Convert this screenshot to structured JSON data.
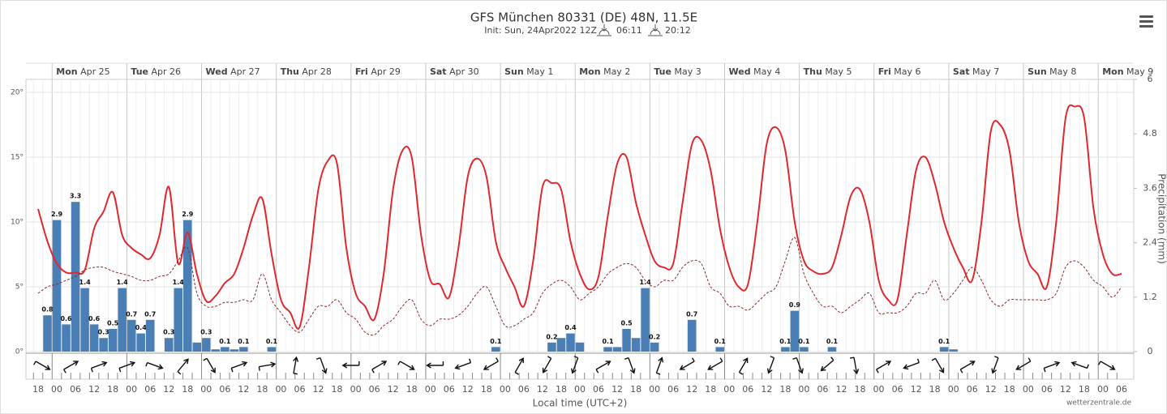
{
  "chart_data": {
    "type": "combo",
    "title": "GFS München 80331 (DE) 48N, 11.5E",
    "subtitle": {
      "init": "Init: Sun, 24Apr2022 12Z",
      "sunrise": "06:11",
      "sunset": "20:12"
    },
    "x_label": "Local time (UTC+2)",
    "y2_label": "Precipitation (mm)",
    "credit": "wetterzentrale.de",
    "day_headers": [
      {
        "weekday": "Mon",
        "date": "Apr 25"
      },
      {
        "weekday": "Tue",
        "date": "Apr 26"
      },
      {
        "weekday": "Wed",
        "date": "Apr 27"
      },
      {
        "weekday": "Thu",
        "date": "Apr 28"
      },
      {
        "weekday": "Fri",
        "date": "Apr 29"
      },
      {
        "weekday": "Sat",
        "date": "Apr 30"
      },
      {
        "weekday": "Sun",
        "date": "May 1"
      },
      {
        "weekday": "Mon",
        "date": "May 2"
      },
      {
        "weekday": "Tue",
        "date": "May 3"
      },
      {
        "weekday": "Wed",
        "date": "May 4"
      },
      {
        "weekday": "Thu",
        "date": "May 5"
      },
      {
        "weekday": "Fri",
        "date": "May 6"
      },
      {
        "weekday": "Sat",
        "date": "May 7"
      },
      {
        "weekday": "Sun",
        "date": "May 8"
      },
      {
        "weekday": "Mon",
        "date": "May 9"
      }
    ],
    "categories": [
      "18",
      null,
      "00",
      null,
      "06",
      null,
      "12",
      null,
      "18",
      null,
      "00",
      null,
      "06",
      null,
      "12",
      null,
      "18",
      null,
      "00",
      null,
      "06",
      null,
      "12",
      null,
      "18",
      null,
      "00",
      null,
      "06",
      null,
      "12",
      null,
      "18",
      null,
      "00",
      null,
      "06",
      null,
      "12",
      null,
      "18",
      null,
      "00",
      null,
      "06",
      null,
      "12",
      null,
      "18",
      null,
      "00",
      null,
      "06",
      null,
      "12",
      null,
      "18",
      null,
      "00",
      null,
      "06",
      null,
      "12",
      null,
      "18",
      null,
      "00",
      null,
      "06",
      null,
      "12",
      null,
      "18",
      null,
      "00",
      null,
      "06",
      null,
      "12",
      null,
      "18",
      null,
      "00",
      null,
      "06",
      null,
      "12",
      null,
      "18",
      null,
      "00",
      null,
      "06",
      null,
      "12",
      null,
      "18",
      null,
      "00",
      null,
      "06",
      null,
      "12",
      null,
      "18",
      null,
      "00",
      null,
      "06",
      null,
      "12",
      null,
      "18",
      null,
      "00",
      null,
      "06"
    ],
    "ylim": [
      0,
      21
    ],
    "yticks": [
      {
        "value": 0,
        "label": "0°"
      },
      {
        "value": 5,
        "label": "5°"
      },
      {
        "value": 10,
        "label": "10°"
      },
      {
        "value": 15,
        "label": "15°"
      },
      {
        "value": 20,
        "label": "20°"
      }
    ],
    "y2lim": [
      0,
      6
    ],
    "y2ticks": [
      0,
      1.2,
      2.4,
      3.6,
      4.8,
      6
    ],
    "grid": true,
    "series": [
      {
        "type": "bar",
        "axis": "y2",
        "color": "#4a7fb5",
        "values": [
          0,
          0.8,
          2.9,
          0.6,
          3.3,
          1.4,
          0.6,
          0.3,
          0.5,
          1.4,
          0.7,
          0.4,
          0.7,
          0,
          0.3,
          1.4,
          2.9,
          0.2,
          0.3,
          0.05,
          0.1,
          0.05,
          0.1,
          0,
          0,
          0.1,
          0,
          0,
          0,
          0,
          0,
          0,
          0,
          0,
          0,
          0,
          0,
          0,
          0,
          0,
          0,
          0,
          0,
          0,
          0,
          0,
          0,
          0,
          0,
          0.1,
          0,
          0,
          0,
          0,
          0,
          0.2,
          0.3,
          0.4,
          0.2,
          0,
          0,
          0.1,
          0.1,
          0.5,
          0.3,
          1.4,
          0.2,
          0,
          0,
          0,
          0.7,
          0,
          0,
          0.1,
          0,
          0,
          0,
          0,
          0,
          0,
          0.1,
          0.9,
          0.1,
          0,
          0,
          0.1,
          0,
          0,
          0,
          0,
          0,
          0,
          0,
          0,
          0,
          0,
          0,
          0.1,
          0.05,
          0,
          0,
          0,
          0,
          0,
          0,
          0,
          0,
          0,
          0,
          0,
          0,
          0,
          0,
          0,
          0,
          0,
          0
        ],
        "value_labels": [
          null,
          "0.8",
          "2.9",
          "0.6",
          "3.3",
          "1.4",
          "0.6",
          "0.3",
          "0.5",
          "1.4",
          "0.7",
          "0.4",
          "0.7",
          null,
          "0.3",
          "1.4",
          "2.9",
          null,
          "0.3",
          null,
          "0.1",
          null,
          "0.1",
          null,
          null,
          "0.1",
          null,
          null,
          null,
          null,
          null,
          null,
          null,
          null,
          null,
          null,
          null,
          null,
          null,
          null,
          null,
          null,
          null,
          null,
          null,
          null,
          null,
          null,
          null,
          "0.1",
          null,
          null,
          null,
          null,
          null,
          "0.2",
          null,
          "0.4",
          null,
          null,
          null,
          "0.1",
          null,
          "0.5",
          null,
          "1.4",
          "0.2",
          null,
          null,
          null,
          "0.7",
          null,
          null,
          "0.1",
          null,
          null,
          null,
          null,
          null,
          null,
          "0.1",
          "0.9",
          "0.1",
          null,
          null,
          "0.1",
          null,
          null,
          null,
          null,
          null,
          null,
          null,
          null,
          null,
          null,
          null,
          "0.1",
          null,
          null,
          null,
          null,
          null,
          null,
          null,
          null,
          null,
          null,
          null,
          null,
          null,
          null,
          null,
          null,
          null,
          null,
          null
        ]
      },
      {
        "type": "line",
        "axis": "y",
        "color": "#e0282e",
        "dashed": false,
        "values": [
          11.0,
          8.5,
          6.8,
          6.1,
          6.1,
          6.3,
          9.5,
          10.8,
          12.3,
          9.0,
          8.0,
          7.5,
          7.2,
          9.0,
          12.7,
          6.8,
          9.2,
          6.0,
          3.9,
          4.3,
          5.3,
          6.0,
          8.0,
          10.5,
          11.8,
          7.5,
          4.0,
          3.0,
          1.9,
          6.5,
          12.5,
          14.7,
          14.5,
          8.0,
          4.5,
          3.5,
          2.5,
          6.0,
          12.5,
          15.5,
          15.0,
          9.0,
          5.5,
          5.2,
          4.2,
          8.0,
          13.5,
          14.9,
          13.5,
          8.5,
          6.5,
          5.0,
          3.5,
          7.0,
          12.7,
          13.0,
          12.5,
          8.5,
          6.0,
          4.8,
          5.8,
          10.5,
          14.5,
          15.0,
          11.5,
          9.0,
          7.0,
          6.5,
          6.8,
          11.5,
          16.0,
          16.3,
          14.0,
          9.5,
          6.5,
          5.0,
          5.2,
          10.0,
          16.0,
          17.3,
          15.5,
          10.0,
          7.0,
          6.2,
          6.0,
          6.5,
          9.0,
          12.0,
          12.5,
          10.0,
          5.5,
          4.0,
          4.0,
          9.0,
          14.0,
          15.0,
          13.0,
          10.0,
          8.0,
          6.5,
          5.5,
          10.0,
          17.0,
          17.5,
          15.5,
          10.0,
          7.0,
          6.0,
          5.0,
          10.0,
          18.0,
          18.9,
          18.0,
          11.0,
          7.5,
          6.0,
          6.0
        ]
      },
      {
        "type": "line",
        "axis": "y",
        "color": "#8b2a2a",
        "dashed": true,
        "values": [
          4.5,
          5.0,
          5.2,
          5.5,
          5.8,
          6.3,
          6.5,
          6.5,
          6.2,
          6.0,
          5.8,
          5.5,
          5.5,
          5.8,
          6.0,
          7.0,
          8.0,
          4.5,
          3.5,
          3.5,
          3.8,
          3.8,
          4.0,
          4.0,
          6.0,
          4.0,
          3.0,
          2.0,
          1.5,
          2.5,
          3.5,
          3.5,
          4.0,
          3.0,
          2.5,
          1.5,
          1.3,
          2.0,
          2.5,
          3.5,
          4.0,
          2.5,
          2.0,
          2.5,
          2.5,
          2.8,
          3.5,
          4.5,
          5.0,
          3.5,
          2.0,
          2.0,
          2.5,
          3.0,
          4.5,
          5.2,
          5.5,
          5.0,
          4.0,
          4.5,
          5.0,
          6.0,
          6.5,
          6.8,
          6.5,
          5.5,
          5.0,
          5.5,
          5.5,
          6.5,
          7.0,
          6.8,
          5.0,
          4.5,
          3.5,
          3.5,
          3.2,
          3.8,
          4.5,
          5.0,
          7.0,
          8.8,
          6.0,
          4.5,
          3.5,
          3.5,
          3.0,
          3.5,
          4.0,
          4.5,
          3.0,
          3.0,
          3.0,
          3.5,
          4.5,
          4.5,
          5.5,
          4.0,
          4.5,
          5.5,
          6.5,
          5.5,
          4.0,
          3.5,
          4.0,
          4.0,
          4.0,
          4.0,
          4.0,
          4.5,
          6.5,
          7.0,
          6.5,
          5.5,
          5.0,
          4.2,
          5.0
        ]
      }
    ],
    "wind_direction": [
      120,
      null,
      null,
      60,
      null,
      null,
      70,
      null,
      null,
      70,
      null,
      null,
      110,
      null,
      null,
      40,
      null,
      null,
      150,
      null,
      null,
      70,
      null,
      null,
      80,
      null,
      null,
      10,
      null,
      null,
      160,
      null,
      null,
      270,
      null,
      null,
      60,
      null,
      null,
      120,
      null,
      null,
      270,
      null,
      null,
      250,
      null,
      null,
      240,
      null,
      null,
      30,
      null,
      null,
      210,
      null,
      null,
      200,
      null,
      null,
      60,
      null,
      null,
      160,
      null,
      null,
      20,
      null,
      null,
      240,
      null,
      null,
      240,
      null,
      null,
      30,
      null,
      null,
      200,
      null,
      null,
      160,
      null,
      null,
      230,
      null,
      null,
      170,
      null,
      null,
      60,
      null,
      null,
      250,
      null,
      null,
      150,
      null,
      null,
      60,
      null,
      null,
      200,
      null,
      null,
      240,
      null,
      null,
      70,
      null,
      null,
      290,
      null,
      null,
      120,
      null,
      null
    ],
    "wind_color": "#111"
  }
}
